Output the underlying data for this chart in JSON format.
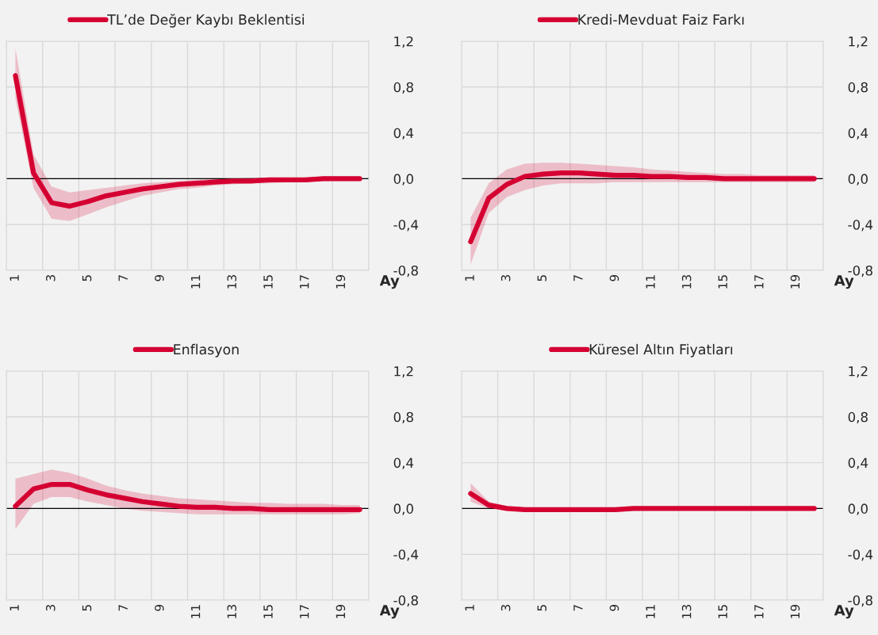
{
  "chart_data": [
    {
      "type": "line",
      "categories": [
        "1",
        null,
        "3",
        null,
        "5",
        null,
        "7",
        null,
        "9",
        null,
        "11",
        null,
        "13",
        null,
        "15",
        null,
        "17",
        null,
        "19",
        null
      ],
      "xlabel": "Ay",
      "ylim": [
        -0.8,
        1.2
      ],
      "yticks": [
        {
          "value": -0.8,
          "label": "-0,8"
        },
        {
          "value": -0.4,
          "label": "-0,4"
        },
        {
          "value": 0,
          "label": "0,0"
        },
        {
          "value": 0.4,
          "label": "0,4"
        },
        {
          "value": 0.8,
          "label": "0,8"
        },
        {
          "value": 1.2,
          "label": "1,2"
        }
      ],
      "grid": true,
      "legend": "top",
      "ref_lines": [
        {
          "axis": "y",
          "value": 0,
          "color": "#000000"
        }
      ],
      "series": [
        {
          "name": "TL’de Değer Kaybı Beklentisi",
          "color": "#d50032",
          "values": [
            0.9,
            0.05,
            -0.21,
            -0.24,
            -0.2,
            -0.15,
            -0.12,
            -0.09,
            -0.07,
            -0.05,
            -0.04,
            -0.03,
            -0.02,
            -0.02,
            -0.01,
            -0.01,
            -0.01,
            0,
            0,
            0
          ],
          "upper": [
            1.14,
            0.21,
            -0.07,
            -0.12,
            -0.1,
            -0.08,
            -0.06,
            -0.04,
            -0.03,
            -0.02,
            -0.01,
            0,
            0,
            0.01,
            0.01,
            0.01,
            0.01,
            0.02,
            0.02,
            0.02
          ],
          "lower": [
            0.7,
            -0.08,
            -0.35,
            -0.37,
            -0.31,
            -0.25,
            -0.2,
            -0.15,
            -0.12,
            -0.09,
            -0.08,
            -0.06,
            -0.05,
            -0.04,
            -0.04,
            -0.03,
            -0.03,
            -0.02,
            -0.02,
            -0.02
          ]
        }
      ]
    },
    {
      "type": "line",
      "categories": [
        "1",
        null,
        "3",
        null,
        "5",
        null,
        "7",
        null,
        "9",
        null,
        "11",
        null,
        "13",
        null,
        "15",
        null,
        "17",
        null,
        "19",
        null
      ],
      "xlabel": "Ay",
      "ylim": [
        -0.8,
        1.2
      ],
      "yticks": [
        {
          "value": -0.8,
          "label": "-0,8"
        },
        {
          "value": -0.4,
          "label": "-0,4"
        },
        {
          "value": 0,
          "label": "0,0"
        },
        {
          "value": 0.4,
          "label": "0,4"
        },
        {
          "value": 0.8,
          "label": "0,8"
        },
        {
          "value": 1.2,
          "label": "1,2"
        }
      ],
      "grid": true,
      "legend": "top",
      "ref_lines": [
        {
          "axis": "y",
          "value": 0,
          "color": "#000000"
        }
      ],
      "series": [
        {
          "name": "Kredi-Mevduat Faiz Farkı",
          "color": "#d50032",
          "values": [
            -0.55,
            -0.17,
            -0.05,
            0.02,
            0.04,
            0.05,
            0.05,
            0.04,
            0.03,
            0.03,
            0.02,
            0.02,
            0.01,
            0.01,
            0,
            0,
            0,
            0,
            0,
            0
          ],
          "upper": [
            -0.34,
            -0.04,
            0.08,
            0.13,
            0.14,
            0.14,
            0.13,
            0.12,
            0.11,
            0.1,
            0.08,
            0.07,
            0.06,
            0.05,
            0.04,
            0.04,
            0.03,
            0.03,
            0.03,
            0.03
          ],
          "lower": [
            -0.75,
            -0.3,
            -0.16,
            -0.1,
            -0.06,
            -0.04,
            -0.04,
            -0.04,
            -0.03,
            -0.03,
            -0.03,
            -0.03,
            -0.03,
            -0.03,
            -0.03,
            -0.03,
            -0.03,
            -0.03,
            -0.03,
            -0.03
          ]
        }
      ]
    },
    {
      "type": "line",
      "categories": [
        "1",
        null,
        "3",
        null,
        "5",
        null,
        "7",
        null,
        "9",
        null,
        "11",
        null,
        "13",
        null,
        "15",
        null,
        "17",
        null,
        "19",
        null
      ],
      "xlabel": "Ay",
      "ylim": [
        -0.8,
        1.2
      ],
      "yticks": [
        {
          "value": -0.8,
          "label": "-0,8"
        },
        {
          "value": -0.4,
          "label": "-0,4"
        },
        {
          "value": 0,
          "label": "0,0"
        },
        {
          "value": 0.4,
          "label": "0,4"
        },
        {
          "value": 0.8,
          "label": "0,8"
        },
        {
          "value": 1.2,
          "label": "1,2"
        }
      ],
      "grid": true,
      "legend": "top",
      "ref_lines": [
        {
          "axis": "y",
          "value": 0,
          "color": "#000000"
        }
      ],
      "series": [
        {
          "name": "Enflasyon",
          "color": "#d50032",
          "values": [
            0.02,
            0.17,
            0.21,
            0.21,
            0.16,
            0.12,
            0.09,
            0.06,
            0.04,
            0.02,
            0.01,
            0.01,
            0,
            0,
            -0.01,
            -0.01,
            -0.01,
            -0.01,
            -0.01,
            -0.01
          ],
          "upper": [
            0.26,
            0.3,
            0.34,
            0.31,
            0.26,
            0.2,
            0.16,
            0.13,
            0.11,
            0.09,
            0.08,
            0.07,
            0.06,
            0.05,
            0.05,
            0.04,
            0.04,
            0.04,
            0.03,
            0.03
          ],
          "lower": [
            -0.18,
            0.04,
            0.1,
            0.1,
            0.06,
            0.03,
            0,
            -0.02,
            -0.03,
            -0.04,
            -0.05,
            -0.05,
            -0.05,
            -0.05,
            -0.05,
            -0.05,
            -0.05,
            -0.05,
            -0.05,
            -0.04
          ]
        }
      ]
    },
    {
      "type": "line",
      "categories": [
        "1",
        null,
        "3",
        null,
        "5",
        null,
        "7",
        null,
        "9",
        null,
        "11",
        null,
        "13",
        null,
        "15",
        null,
        "17",
        null,
        "19",
        null
      ],
      "xlabel": "Ay",
      "ylim": [
        -0.8,
        1.2
      ],
      "yticks": [
        {
          "value": -0.8,
          "label": "-0,8"
        },
        {
          "value": -0.4,
          "label": "-0,4"
        },
        {
          "value": 0,
          "label": "0,0"
        },
        {
          "value": 0.4,
          "label": "0,4"
        },
        {
          "value": 0.8,
          "label": "0,8"
        },
        {
          "value": 1.2,
          "label": "1,2"
        }
      ],
      "grid": true,
      "legend": "top",
      "ref_lines": [
        {
          "axis": "y",
          "value": 0,
          "color": "#000000"
        }
      ],
      "series": [
        {
          "name": "Küresel Altın Fiyatları",
          "color": "#d50032",
          "values": [
            0.13,
            0.03,
            0,
            -0.01,
            -0.01,
            -0.01,
            -0.01,
            -0.01,
            -0.01,
            0,
            0,
            0,
            0,
            0,
            0,
            0,
            0,
            0,
            0,
            0
          ],
          "upper": [
            0.22,
            0.06,
            0.02,
            0.01,
            0,
            0,
            0,
            0,
            0,
            0.01,
            0.01,
            0.01,
            0.01,
            0.01,
            0.01,
            0.01,
            0.01,
            0.01,
            0.01,
            0.01
          ],
          "lower": [
            0.06,
            0,
            -0.02,
            -0.03,
            -0.02,
            -0.02,
            -0.02,
            -0.02,
            -0.02,
            -0.01,
            -0.01,
            -0.01,
            -0.01,
            -0.01,
            -0.01,
            -0.01,
            -0.01,
            -0.01,
            -0.01,
            -0.01
          ]
        }
      ]
    }
  ]
}
